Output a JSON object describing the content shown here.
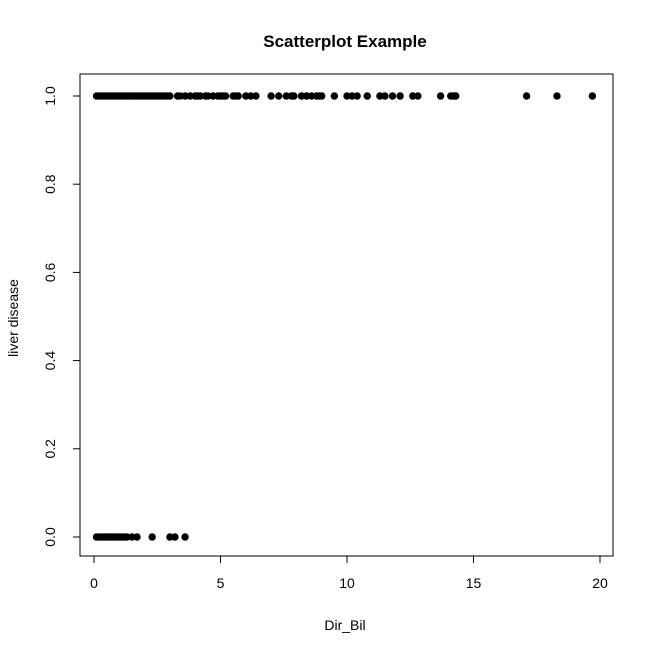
{
  "chart_data": {
    "type": "scatter",
    "title": "Scatterplot Example",
    "xlabel": "Dir_Bil",
    "ylabel": "liver disease",
    "xlim": [
      0,
      20
    ],
    "ylim": [
      0,
      1
    ],
    "x_ticks": [
      0,
      5,
      10,
      15,
      20
    ],
    "y_ticks": [
      0.0,
      0.2,
      0.4,
      0.6,
      0.8,
      1.0
    ],
    "x_tick_labels": [
      "0",
      "5",
      "10",
      "15",
      "20"
    ],
    "y_tick_labels": [
      "0.0",
      "0.2",
      "0.4",
      "0.6",
      "0.8",
      "1.0"
    ],
    "grid": false,
    "marker_color": "#000000",
    "points": [
      {
        "x": 0.1,
        "y": 0
      },
      {
        "x": 0.2,
        "y": 0
      },
      {
        "x": 0.3,
        "y": 0
      },
      {
        "x": 0.4,
        "y": 0
      },
      {
        "x": 0.5,
        "y": 0
      },
      {
        "x": 0.6,
        "y": 0
      },
      {
        "x": 0.7,
        "y": 0
      },
      {
        "x": 0.8,
        "y": 0
      },
      {
        "x": 0.9,
        "y": 0
      },
      {
        "x": 1.0,
        "y": 0
      },
      {
        "x": 1.1,
        "y": 0
      },
      {
        "x": 1.2,
        "y": 0
      },
      {
        "x": 1.3,
        "y": 0
      },
      {
        "x": 1.5,
        "y": 0
      },
      {
        "x": 1.7,
        "y": 0
      },
      {
        "x": 2.3,
        "y": 0
      },
      {
        "x": 3.0,
        "y": 0
      },
      {
        "x": 3.2,
        "y": 0
      },
      {
        "x": 3.6,
        "y": 0
      },
      {
        "x": 0.1,
        "y": 1
      },
      {
        "x": 0.2,
        "y": 1
      },
      {
        "x": 0.3,
        "y": 1
      },
      {
        "x": 0.4,
        "y": 1
      },
      {
        "x": 0.5,
        "y": 1
      },
      {
        "x": 0.6,
        "y": 1
      },
      {
        "x": 0.7,
        "y": 1
      },
      {
        "x": 0.8,
        "y": 1
      },
      {
        "x": 0.9,
        "y": 1
      },
      {
        "x": 1.0,
        "y": 1
      },
      {
        "x": 1.1,
        "y": 1
      },
      {
        "x": 1.2,
        "y": 1
      },
      {
        "x": 1.3,
        "y": 1
      },
      {
        "x": 1.4,
        "y": 1
      },
      {
        "x": 1.5,
        "y": 1
      },
      {
        "x": 1.6,
        "y": 1
      },
      {
        "x": 1.7,
        "y": 1
      },
      {
        "x": 1.8,
        "y": 1
      },
      {
        "x": 1.9,
        "y": 1
      },
      {
        "x": 2.0,
        "y": 1
      },
      {
        "x": 2.1,
        "y": 1
      },
      {
        "x": 2.2,
        "y": 1
      },
      {
        "x": 2.3,
        "y": 1
      },
      {
        "x": 2.4,
        "y": 1
      },
      {
        "x": 2.5,
        "y": 1
      },
      {
        "x": 2.6,
        "y": 1
      },
      {
        "x": 2.7,
        "y": 1
      },
      {
        "x": 2.8,
        "y": 1
      },
      {
        "x": 2.9,
        "y": 1
      },
      {
        "x": 3.0,
        "y": 1
      },
      {
        "x": 3.3,
        "y": 1
      },
      {
        "x": 3.4,
        "y": 1
      },
      {
        "x": 3.6,
        "y": 1
      },
      {
        "x": 3.8,
        "y": 1
      },
      {
        "x": 4.0,
        "y": 1
      },
      {
        "x": 4.1,
        "y": 1
      },
      {
        "x": 4.2,
        "y": 1
      },
      {
        "x": 4.4,
        "y": 1
      },
      {
        "x": 4.5,
        "y": 1
      },
      {
        "x": 4.7,
        "y": 1
      },
      {
        "x": 4.9,
        "y": 1
      },
      {
        "x": 5.0,
        "y": 1
      },
      {
        "x": 5.1,
        "y": 1
      },
      {
        "x": 5.2,
        "y": 1
      },
      {
        "x": 5.5,
        "y": 1
      },
      {
        "x": 5.6,
        "y": 1
      },
      {
        "x": 5.7,
        "y": 1
      },
      {
        "x": 6.0,
        "y": 1
      },
      {
        "x": 6.2,
        "y": 1
      },
      {
        "x": 6.4,
        "y": 1
      },
      {
        "x": 7.0,
        "y": 1
      },
      {
        "x": 7.3,
        "y": 1
      },
      {
        "x": 7.6,
        "y": 1
      },
      {
        "x": 7.8,
        "y": 1
      },
      {
        "x": 7.9,
        "y": 1
      },
      {
        "x": 8.2,
        "y": 1
      },
      {
        "x": 8.4,
        "y": 1
      },
      {
        "x": 8.6,
        "y": 1
      },
      {
        "x": 8.8,
        "y": 1
      },
      {
        "x": 8.9,
        "y": 1
      },
      {
        "x": 9.0,
        "y": 1
      },
      {
        "x": 9.5,
        "y": 1
      },
      {
        "x": 10.0,
        "y": 1
      },
      {
        "x": 10.2,
        "y": 1
      },
      {
        "x": 10.4,
        "y": 1
      },
      {
        "x": 10.8,
        "y": 1
      },
      {
        "x": 11.3,
        "y": 1
      },
      {
        "x": 11.5,
        "y": 1
      },
      {
        "x": 11.8,
        "y": 1
      },
      {
        "x": 12.1,
        "y": 1
      },
      {
        "x": 12.6,
        "y": 1
      },
      {
        "x": 12.8,
        "y": 1
      },
      {
        "x": 13.7,
        "y": 1
      },
      {
        "x": 14.1,
        "y": 1
      },
      {
        "x": 14.2,
        "y": 1
      },
      {
        "x": 14.3,
        "y": 1
      },
      {
        "x": 17.1,
        "y": 1
      },
      {
        "x": 18.3,
        "y": 1
      },
      {
        "x": 19.7,
        "y": 1
      }
    ]
  }
}
